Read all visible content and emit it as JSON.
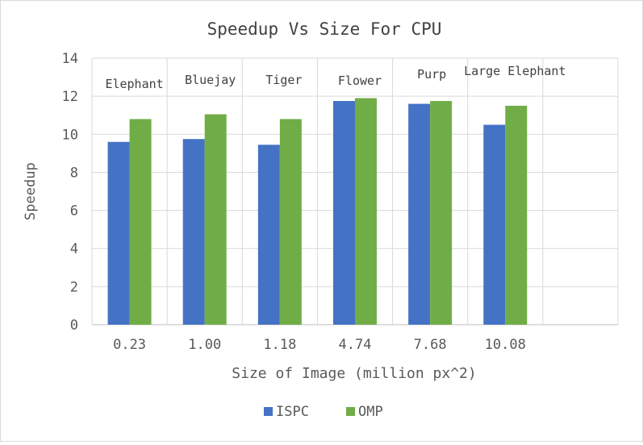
{
  "chart_data": {
    "type": "bar",
    "title": "Speedup Vs Size For CPU",
    "xlabel": "Size of Image (million px^2)",
    "ylabel": "Speedup",
    "categories": [
      "0.23",
      "1.00",
      "1.18",
      "4.74",
      "7.68",
      "10.08"
    ],
    "annotations": [
      "Elephant",
      "Bluejay",
      "Tiger",
      "Flower",
      "Purp",
      "Large Elephant"
    ],
    "series": [
      {
        "name": "ISPC",
        "color": "#4472C4",
        "values": [
          9.6,
          9.75,
          9.45,
          11.75,
          11.6,
          10.5
        ]
      },
      {
        "name": "OMP",
        "color": "#70AD47",
        "values": [
          10.8,
          11.05,
          10.8,
          11.9,
          11.75,
          11.5
        ]
      }
    ],
    "ylim": [
      0,
      14
    ],
    "yticks": [
      0,
      2,
      4,
      6,
      8,
      10,
      12,
      14
    ],
    "grid": true,
    "legend": "bottom"
  }
}
